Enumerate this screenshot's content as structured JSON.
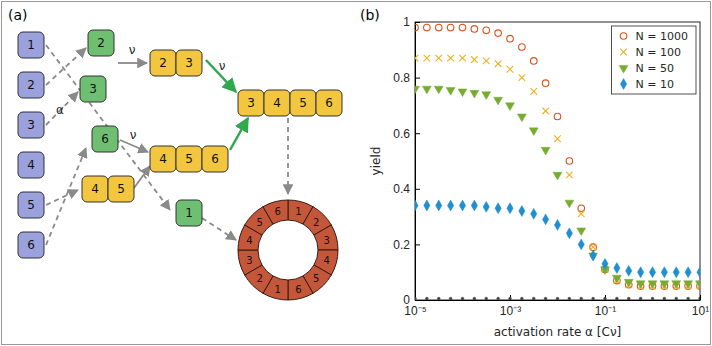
{
  "chart_data": {
    "type": "scatter",
    "title": "(b)",
    "x_label": "activation rate α [Cν]",
    "y_label": "yield",
    "log": "x",
    "legend": "upper right",
    "xlim": [
      1e-05,
      10
    ],
    "xticks": [
      {
        "value": 1e-05,
        "label": "10⁻⁵"
      },
      {
        "value": 0.001,
        "label": "10⁻³"
      },
      {
        "value": 0.1,
        "label": "10⁻¹"
      },
      {
        "value": 10,
        "label": "10¹"
      }
    ],
    "ylim": [
      0,
      1
    ],
    "yticks": [
      0,
      0.2,
      0.4,
      0.6,
      0.8,
      1
    ],
    "x": [
      1e-05,
      1.778e-05,
      3.162e-05,
      5.623e-05,
      0.0001,
      0.0001778,
      0.0003162,
      0.0005623,
      0.001,
      0.001778,
      0.003162,
      0.005623,
      0.01,
      0.01778,
      0.03162,
      0.05623,
      0.1,
      0.1778,
      0.3162,
      0.5623,
      1,
      1.778,
      3.162,
      5.623,
      10
    ],
    "series": [
      {
        "name": "N = 1000",
        "color": "#d95319",
        "marker": "circle",
        "values": [
          0.98,
          0.98,
          0.98,
          0.98,
          0.98,
          0.975,
          0.97,
          0.96,
          0.94,
          0.91,
          0.86,
          0.78,
          0.66,
          0.5,
          0.33,
          0.19,
          0.11,
          0.07,
          0.055,
          0.05,
          0.05,
          0.05,
          0.05,
          0.05,
          0.05
        ]
      },
      {
        "name": "N = 100",
        "color": "#edb120",
        "marker": "x",
        "values": [
          0.87,
          0.87,
          0.87,
          0.87,
          0.87,
          0.865,
          0.86,
          0.85,
          0.83,
          0.8,
          0.75,
          0.68,
          0.58,
          0.45,
          0.31,
          0.19,
          0.11,
          0.07,
          0.055,
          0.05,
          0.05,
          0.05,
          0.05,
          0.05,
          0.05
        ]
      },
      {
        "name": "N = 50",
        "color": "#77ac30",
        "marker": "triangle-down",
        "values": [
          0.76,
          0.76,
          0.76,
          0.755,
          0.75,
          0.745,
          0.74,
          0.72,
          0.7,
          0.66,
          0.61,
          0.54,
          0.45,
          0.35,
          0.25,
          0.16,
          0.11,
          0.08,
          0.065,
          0.06,
          0.06,
          0.06,
          0.06,
          0.06,
          0.06
        ]
      },
      {
        "name": "N = 10",
        "color": "#1f8fd0",
        "marker": "diamond",
        "values": [
          0.34,
          0.34,
          0.34,
          0.34,
          0.34,
          0.34,
          0.335,
          0.33,
          0.33,
          0.32,
          0.31,
          0.29,
          0.27,
          0.24,
          0.2,
          0.16,
          0.13,
          0.115,
          0.105,
          0.1,
          0.1,
          0.1,
          0.1,
          0.1,
          0.1
        ]
      },
      {
        "color": "#404040",
        "marker": "point",
        "values": [
          0.005,
          0.005,
          0.005,
          0.005,
          0.005,
          0.005,
          0.005,
          0.005,
          0.005,
          0.005,
          0.005,
          0.005,
          0.005,
          0.005,
          0.005,
          0.005,
          0.005,
          0.005,
          0.005,
          0.005,
          0.005,
          0.005,
          0.005,
          0.005,
          0.005
        ]
      }
    ]
  },
  "diagram": {
    "label": "(a)",
    "inactive": [
      "1",
      "2",
      "3",
      "4",
      "5",
      "6"
    ],
    "active": [
      "2",
      "3",
      "6",
      "1"
    ],
    "chains": [
      [
        "2",
        "3"
      ],
      [
        "4",
        "5"
      ],
      [
        "4",
        "5",
        "6"
      ],
      [
        "3",
        "4",
        "5",
        "6"
      ]
    ],
    "ring": [
      "1",
      "2",
      "3",
      "4",
      "5",
      "6",
      "1",
      "2",
      "3",
      "4",
      "5",
      "6"
    ],
    "rates": {
      "activation": "α",
      "binding": [
        "ν",
        "ν",
        "ν"
      ]
    }
  }
}
